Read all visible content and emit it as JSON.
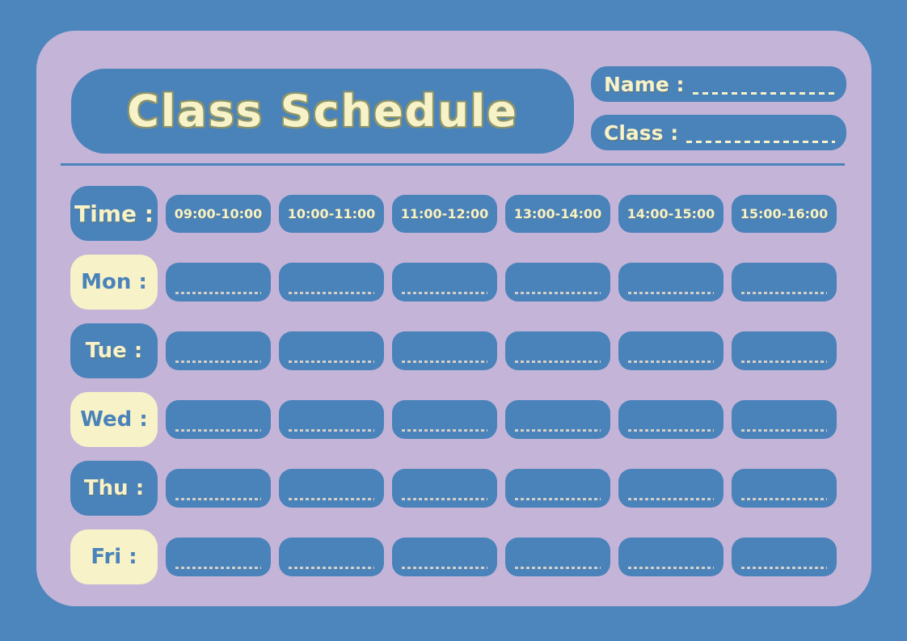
{
  "header": {
    "title": "Class Schedule",
    "name_label": "Name :",
    "name_value": "",
    "class_label": "Class :",
    "class_value": ""
  },
  "schedule": {
    "time_label": "Time :",
    "time_slots": [
      "09:00-10:00",
      "10:00-11:00",
      "11:00-12:00",
      "13:00-14:00",
      "14:00-15:00",
      "15:00-16:00"
    ],
    "day_labels": [
      "Mon :",
      "Tue :",
      "Wed :",
      "Thu :",
      "Fri :"
    ],
    "columns_per_day": 6,
    "cell_values": []
  },
  "colors": {
    "background_blue": "#4d85bd",
    "panel_purple": "#c4b5d8",
    "block_blue": "#4a82ba",
    "cream": "#f7f2c7",
    "cell_line": "#d2cfc9",
    "title_outline": "#8d9468"
  }
}
